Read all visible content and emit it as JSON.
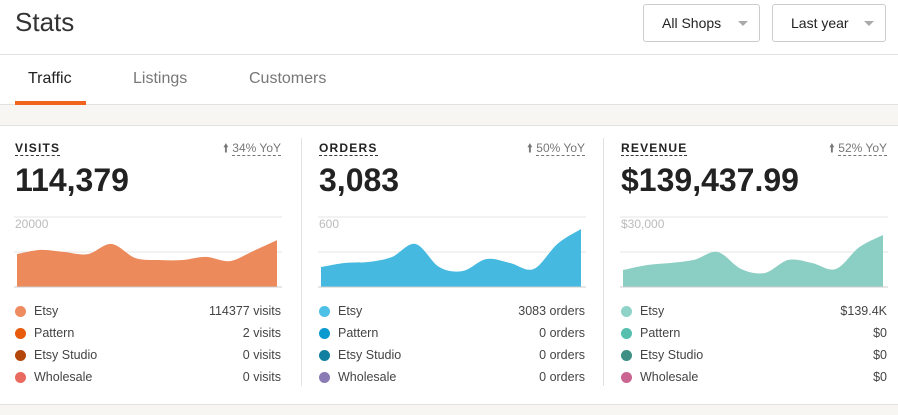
{
  "header": {
    "title": "Stats",
    "shop_select": "All Shops",
    "period_select": "Last year"
  },
  "tabs": [
    {
      "label": "Traffic",
      "active": true
    },
    {
      "label": "Listings"
    },
    {
      "label": "Customers"
    }
  ],
  "cards": [
    {
      "label": "VISITS",
      "yoy": "34% YoY",
      "total": "114,379",
      "axis_max_label": "20000",
      "color": "#ed8a5c",
      "chart_data": {
        "type": "area",
        "ylim": [
          0,
          20000
        ],
        "values": [
          9400,
          10600,
          10000,
          9400,
          12300,
          8300,
          7700,
          7700,
          8600,
          7400,
          10300,
          13400
        ]
      },
      "legend": [
        {
          "name": "Etsy",
          "value": "114377 visits",
          "color": "#ee8c5f"
        },
        {
          "name": "Pattern",
          "value": "2 visits",
          "color": "#e85a0c"
        },
        {
          "name": "Etsy Studio",
          "value": "0 visits",
          "color": "#b3460b"
        },
        {
          "name": "Wholesale",
          "value": "0 visits",
          "color": "#e96a5e"
        }
      ]
    },
    {
      "label": "ORDERS",
      "yoy": "50% YoY",
      "total": "3,083",
      "axis_max_label": "600",
      "color": "#45b9e0",
      "chart_data": {
        "type": "area",
        "ylim": [
          0,
          600
        ],
        "values": [
          171,
          206,
          214,
          257,
          369,
          171,
          137,
          240,
          206,
          154,
          369,
          497
        ]
      },
      "legend": [
        {
          "name": "Etsy",
          "value": "3083 orders",
          "color": "#4cc0e6"
        },
        {
          "name": "Pattern",
          "value": "0 orders",
          "color": "#0a9ad0"
        },
        {
          "name": "Etsy Studio",
          "value": "0 orders",
          "color": "#127fa0"
        },
        {
          "name": "Wholesale",
          "value": "0 orders",
          "color": "#8a7bb5"
        }
      ]
    },
    {
      "label": "REVENUE",
      "yoy": "52% YoY",
      "total": "$139,437.99",
      "axis_max_label": "$30,000",
      "color": "#8bcfc4",
      "chart_data": {
        "type": "area",
        "ylim": [
          0,
          30000
        ],
        "values": [
          7300,
          9400,
          10300,
          11600,
          15000,
          7700,
          6000,
          11600,
          10300,
          7700,
          17100,
          22300
        ]
      },
      "legend": [
        {
          "name": "Etsy",
          "value": "$139.4K",
          "color": "#8fd3c8"
        },
        {
          "name": "Pattern",
          "value": "$0",
          "color": "#56bfae"
        },
        {
          "name": "Etsy Studio",
          "value": "$0",
          "color": "#3e8f84"
        },
        {
          "name": "Wholesale",
          "value": "$0",
          "color": "#c96590"
        }
      ]
    }
  ]
}
